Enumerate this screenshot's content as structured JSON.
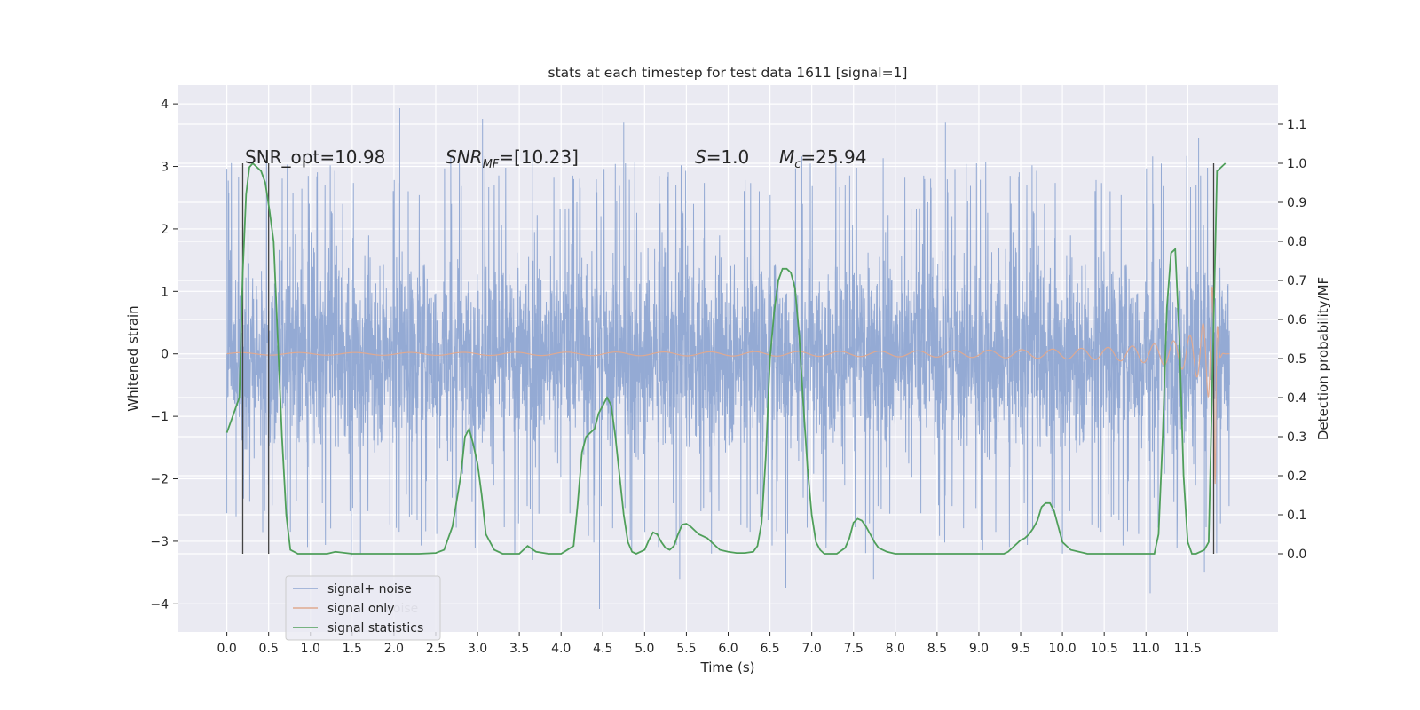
{
  "chart_data": {
    "type": "line",
    "title": "stats at each timestep for test data 1611 [signal=1]",
    "xlabel": "Time (s)",
    "ylabel": "Whitened strain",
    "ylabel_right": "Detection probability/MF",
    "xlim": [
      -0.58,
      12.58
    ],
    "ylim": [
      -4.45,
      4.3
    ],
    "ylim_right": [
      -0.2,
      1.2
    ],
    "grid": true,
    "xticks": [
      0.0,
      0.5,
      1.0,
      1.5,
      2.0,
      2.5,
      3.0,
      3.5,
      4.0,
      4.5,
      5.0,
      5.5,
      6.0,
      6.5,
      7.0,
      7.5,
      8.0,
      8.5,
      9.0,
      9.5,
      10.0,
      10.5,
      11.0,
      11.5
    ],
    "xtick_labels": [
      "0.0",
      "0.5",
      "1.0",
      "1.5",
      "2.0",
      "2.5",
      "3.0",
      "3.5",
      "4.0",
      "4.5",
      "5.0",
      "5.5",
      "6.0",
      "6.5",
      "7.0",
      "7.5",
      "8.0",
      "8.5",
      "9.0",
      "9.5",
      "10.0",
      "10.5",
      "11.0",
      "11.5"
    ],
    "yticks": [
      -4,
      -3,
      -2,
      -1,
      0,
      1,
      2,
      3,
      4
    ],
    "ytick_labels": [
      "−4",
      "−3",
      "−2",
      "−1",
      "0",
      "1",
      "2",
      "3",
      "4"
    ],
    "yticks_right": [
      0.0,
      0.1,
      0.2,
      0.3,
      0.4,
      0.5,
      0.6,
      0.7,
      0.8,
      0.9,
      1.0,
      1.1
    ],
    "ytick_labels_right": [
      "0.0",
      "0.1",
      "0.2",
      "0.3",
      "0.4",
      "0.5",
      "0.6",
      "0.7",
      "0.8",
      "0.9",
      "1.0",
      "1.1"
    ],
    "annotations": [
      {
        "text": "SNR_opt=10.98",
        "x": 0.2,
        "y": 3.15
      },
      {
        "text": "SNR_MF=[10.23]",
        "x": 2.6,
        "y": 3.15
      },
      {
        "text": "S=1.0",
        "x": 5.6,
        "y": 3.15
      },
      {
        "text": "M_c=25.94",
        "x": 6.6,
        "y": 3.15
      }
    ],
    "vertical_lines": [
      0.19,
      0.5,
      11.81
    ],
    "series": [
      {
        "name": "signal+ noise",
        "color": "#8fa6d2",
        "axis": "left",
        "x_range": [
          0.0,
          12.0
        ],
        "typical_abs": 1.8,
        "extremes": [
          {
            "x": 0.0,
            "y": -2.55
          },
          {
            "x": 0.11,
            "y": -2.6
          },
          {
            "x": 1.49,
            "y": -3.25
          },
          {
            "x": 2.07,
            "y": 3.93
          },
          {
            "x": 3.06,
            "y": 3.76
          },
          {
            "x": 3.66,
            "y": -3.3
          },
          {
            "x": 4.46,
            "y": -4.08
          },
          {
            "x": 4.75,
            "y": 3.7
          },
          {
            "x": 5.42,
            "y": -3.6
          },
          {
            "x": 6.69,
            "y": -3.75
          },
          {
            "x": 7.74,
            "y": -3.6
          },
          {
            "x": 8.6,
            "y": 3.7
          },
          {
            "x": 11.05,
            "y": -3.83
          },
          {
            "x": 11.63,
            "y": 3.45
          },
          {
            "x": 11.7,
            "y": -3.5
          }
        ]
      },
      {
        "name": "signal only",
        "color": "#e0a98f",
        "axis": "left",
        "x_range": [
          0.0,
          12.0
        ],
        "peak_x": 11.83,
        "peak_amplitude": 2.4
      },
      {
        "name": "signal statistics",
        "color": "#4f9f5a",
        "axis": "right",
        "x": [
          0.0,
          0.05,
          0.1,
          0.15,
          0.19,
          0.23,
          0.27,
          0.31,
          0.36,
          0.41,
          0.46,
          0.51,
          0.56,
          0.61,
          0.66,
          0.71,
          0.76,
          0.85,
          1.0,
          1.2,
          1.3,
          1.5,
          2.0,
          2.3,
          2.5,
          2.6,
          2.7,
          2.8,
          2.85,
          2.9,
          2.95,
          3.0,
          3.05,
          3.1,
          3.2,
          3.3,
          3.5,
          3.6,
          3.7,
          3.85,
          4.0,
          4.15,
          4.2,
          4.25,
          4.3,
          4.35,
          4.4,
          4.45,
          4.5,
          4.55,
          4.6,
          4.65,
          4.7,
          4.75,
          4.8,
          4.85,
          4.9,
          5.0,
          5.05,
          5.1,
          5.15,
          5.2,
          5.25,
          5.3,
          5.35,
          5.4,
          5.45,
          5.5,
          5.55,
          5.6,
          5.65,
          5.7,
          5.75,
          5.8,
          5.9,
          6.0,
          6.1,
          6.2,
          6.3,
          6.35,
          6.4,
          6.45,
          6.5,
          6.55,
          6.6,
          6.65,
          6.7,
          6.75,
          6.8,
          6.85,
          6.9,
          6.95,
          7.0,
          7.05,
          7.1,
          7.15,
          7.2,
          7.3,
          7.4,
          7.45,
          7.5,
          7.55,
          7.6,
          7.65,
          7.7,
          7.75,
          7.8,
          7.9,
          8.0,
          8.2,
          8.4,
          8.6,
          8.8,
          9.0,
          9.2,
          9.3,
          9.35,
          9.4,
          9.45,
          9.5,
          9.55,
          9.6,
          9.65,
          9.7,
          9.75,
          9.8,
          9.85,
          9.9,
          9.95,
          10.0,
          10.1,
          10.3,
          10.6,
          10.9,
          11.0,
          11.1,
          11.15,
          11.2,
          11.25,
          11.3,
          11.35,
          11.4,
          11.45,
          11.5,
          11.55,
          11.6,
          11.65,
          11.7,
          11.75,
          11.8,
          11.85,
          11.9,
          11.95
        ],
        "y": [
          0.31,
          0.34,
          0.37,
          0.4,
          0.72,
          0.92,
          0.99,
          1.0,
          0.99,
          0.98,
          0.95,
          0.88,
          0.8,
          0.55,
          0.3,
          0.1,
          0.01,
          0.0,
          0.0,
          0.0,
          0.005,
          0.0,
          0.0,
          0.0,
          0.002,
          0.01,
          0.07,
          0.2,
          0.3,
          0.32,
          0.28,
          0.23,
          0.15,
          0.05,
          0.01,
          0.0,
          0.0,
          0.02,
          0.005,
          0.0,
          0.0,
          0.02,
          0.13,
          0.26,
          0.3,
          0.31,
          0.32,
          0.36,
          0.38,
          0.4,
          0.38,
          0.3,
          0.2,
          0.1,
          0.03,
          0.005,
          0.0,
          0.01,
          0.035,
          0.055,
          0.05,
          0.03,
          0.015,
          0.01,
          0.02,
          0.05,
          0.075,
          0.077,
          0.07,
          0.06,
          0.05,
          0.045,
          0.04,
          0.03,
          0.01,
          0.005,
          0.002,
          0.002,
          0.005,
          0.02,
          0.08,
          0.25,
          0.5,
          0.62,
          0.7,
          0.73,
          0.73,
          0.72,
          0.68,
          0.56,
          0.38,
          0.22,
          0.1,
          0.03,
          0.01,
          0.0,
          0.0,
          0.0,
          0.015,
          0.04,
          0.08,
          0.09,
          0.085,
          0.07,
          0.05,
          0.03,
          0.015,
          0.005,
          0.0,
          0.0,
          0.0,
          0.0,
          0.0,
          0.0,
          0.0,
          0.0,
          0.005,
          0.015,
          0.025,
          0.035,
          0.04,
          0.05,
          0.065,
          0.085,
          0.12,
          0.13,
          0.13,
          0.11,
          0.07,
          0.03,
          0.01,
          0.0,
          0.0,
          0.0,
          0.0,
          0.0,
          0.05,
          0.3,
          0.63,
          0.77,
          0.78,
          0.55,
          0.2,
          0.03,
          0.0,
          0.0,
          0.005,
          0.01,
          0.03,
          0.5,
          0.98,
          0.99,
          1.0
        ]
      }
    ],
    "legend": {
      "placement": "lower-left",
      "entries": [
        "signal+ noise",
        "signal only",
        "signal statistics"
      ],
      "ghost_text": "noise"
    }
  }
}
